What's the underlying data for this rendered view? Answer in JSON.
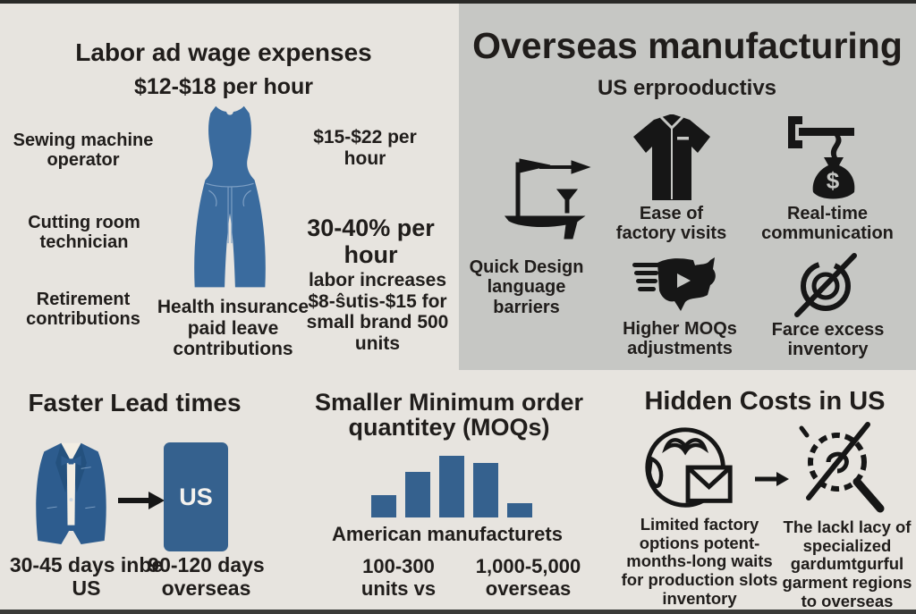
{
  "page": {
    "bg_color": "#e7e4df",
    "panel_color": "#c6c7c4",
    "text_color": "#201d1b",
    "blue_color": "#35618e",
    "icon_color": "#161616"
  },
  "labor": {
    "title": "Labor ad wage expenses",
    "subtitle": "$12-$18 per hour",
    "sewing": "Sewing machine operator",
    "rate1": "$15-$22 per hour",
    "cutting": "Cutting room technician",
    "rate2": "30-40% per hour",
    "retirement": "Retirement contributions",
    "health": "Health insurance paid leave contributions",
    "increase": "labor increases $8-ŝutis-$15 for small brand 500 units"
  },
  "overseas": {
    "title": "Overseas manufacturing",
    "subtitle": "US erprooductivs",
    "items": [
      {
        "icon": "boat-flag-icon",
        "label": "Quick Design language barriers"
      },
      {
        "icon": "shirt-icon",
        "label": "Ease of factory visits"
      },
      {
        "icon": "clamp-money-icon",
        "label": "Real-time communication"
      },
      {
        "icon": "us-map-icon",
        "label": "Higher MOQs adjustments"
      },
      {
        "icon": "no-inventory-icon",
        "label": "Farce excess inventory"
      }
    ]
  },
  "lead_times": {
    "title": "Faster Lead times",
    "us_box_label": "US",
    "left_caption": "30-45 days inbe US",
    "right_caption": "90-120 days overseas"
  },
  "moq": {
    "title": "Smaller Minimum order quantitey (MOQs)",
    "chart_caption": "American manufacturets",
    "left_caption": "100-300 units vs",
    "right_caption": "1,000-5,000 overseas"
  },
  "hidden": {
    "title": "Hidden Costs in US",
    "left_caption": "Limited factory options potent- months-long waits for production slots inventory",
    "right_caption": "The lackl lacy of specialized gardumtgurful garment regions to overseas"
  },
  "chart_data": {
    "type": "bar",
    "categories": [
      "b1",
      "b2",
      "b3",
      "b4",
      "b5"
    ],
    "values": [
      25,
      51,
      69,
      61,
      16
    ],
    "title": "",
    "xlabel": "",
    "ylabel": "",
    "ylim": [
      0,
      77
    ],
    "grid": false,
    "legend": "none",
    "bar_color": "#35618e",
    "note": "decorative MOQ comparison bars, no axes shown"
  }
}
